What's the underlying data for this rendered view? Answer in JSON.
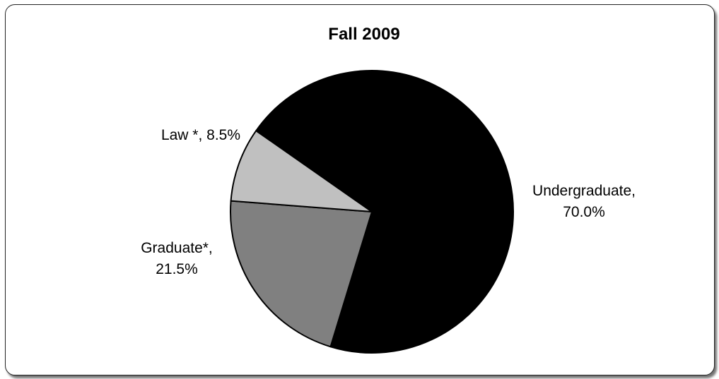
{
  "chart_data": {
    "type": "pie",
    "title": "Fall 2009",
    "slices": [
      {
        "name": "Undergraduate",
        "value": 70.0,
        "label_lines": [
          "Undergraduate,",
          "70.0%"
        ],
        "color": "#000000"
      },
      {
        "name": "Graduate*",
        "value": 21.5,
        "label_lines": [
          "Graduate*,",
          "21.5%"
        ],
        "color": "#808080"
      },
      {
        "name": "Law *",
        "value": 8.5,
        "label_lines": [
          "Law *, 8.5%"
        ],
        "color": "#c0c0c0"
      }
    ]
  }
}
